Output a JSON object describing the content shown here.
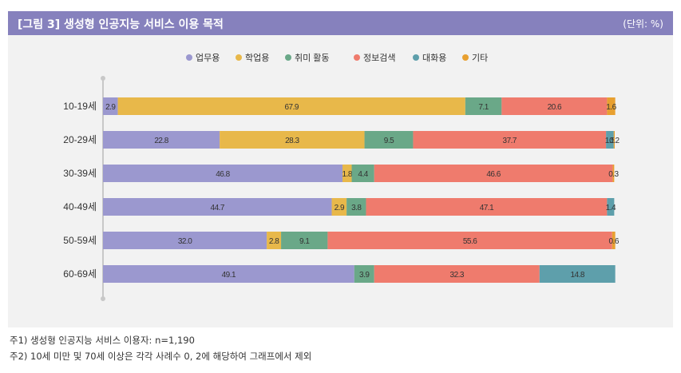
{
  "header": {
    "title": "[그림 3]  생성형 인공지능 서비스 이용 목적",
    "unit": "(단위: %)"
  },
  "chart_data": {
    "type": "bar",
    "orientation": "horizontal",
    "stacked": true,
    "categories": [
      "10-19세",
      "20-29세",
      "30-39세",
      "40-49세",
      "50-59세",
      "60-69세"
    ],
    "series": [
      {
        "name": "업무용",
        "color": "#9b98cf",
        "values": [
          2.9,
          22.8,
          46.8,
          44.7,
          32.0,
          49.1
        ]
      },
      {
        "name": "학업용",
        "color": "#e8b84a",
        "values": [
          67.9,
          28.3,
          1.8,
          2.9,
          2.8,
          0
        ]
      },
      {
        "name": "취미 활동",
        "color": "#6aa888",
        "values": [
          7.1,
          9.5,
          4.4,
          3.8,
          9.1,
          3.9
        ]
      },
      {
        "name": "정보검색",
        "color": "#ef7b6d",
        "values": [
          20.6,
          37.7,
          46.6,
          47.1,
          55.6,
          32.3
        ]
      },
      {
        "name": "대화용",
        "color": "#5e9fab",
        "values": [
          0,
          1.5,
          0,
          1.4,
          0,
          14.8
        ]
      },
      {
        "name": "기타",
        "color": "#e8a030",
        "values": [
          1.6,
          0.2,
          0.3,
          0,
          0.6,
          0
        ]
      }
    ],
    "labels": [
      [
        "2.9",
        "67.9",
        "7.1",
        "20.6",
        "",
        "1.6"
      ],
      [
        "22.8",
        "28.3",
        "9.5",
        "37.7",
        "1.5",
        "0.2"
      ],
      [
        "46.8",
        "1.8",
        "4.4",
        "46.6",
        "",
        "0.3"
      ],
      [
        "44.7",
        "2.9",
        "3.8",
        "47.1",
        "1.4",
        ""
      ],
      [
        "32.0",
        "2.8",
        "9.1",
        "55.6",
        "",
        "0.6"
      ],
      [
        "49.1",
        "",
        "3.9",
        "32.3",
        "14.8",
        ""
      ]
    ],
    "xlim": [
      0,
      100
    ],
    "legend_position": "top-center"
  },
  "footnotes": [
    "주1) 생성형 인공지능 서비스 이용자: n=1,190",
    "주2) 10세 미만 및 70세 이상은 각각 사례수 0, 2에 해당하여 그래프에서 제외"
  ]
}
